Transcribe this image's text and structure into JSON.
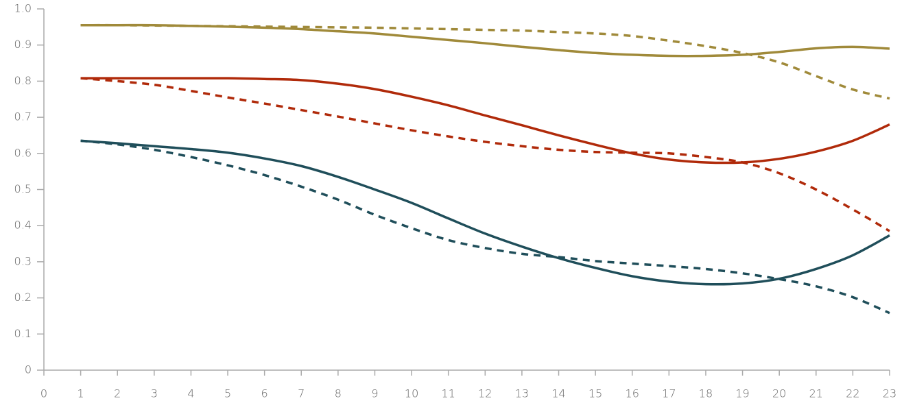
{
  "chart_data": {
    "type": "line",
    "x": [
      1,
      2,
      3,
      4,
      5,
      6,
      7,
      8,
      9,
      10,
      11,
      12,
      13,
      14,
      15,
      16,
      17,
      18,
      19,
      20,
      21,
      22,
      23
    ],
    "series": [
      {
        "color": "#a08a3a",
        "dashed": false,
        "values": [
          0.955,
          0.955,
          0.955,
          0.953,
          0.951,
          0.948,
          0.944,
          0.938,
          0.932,
          0.923,
          0.914,
          0.905,
          0.895,
          0.886,
          0.878,
          0.873,
          0.87,
          0.87,
          0.873,
          0.881,
          0.891,
          0.895,
          0.89
        ]
      },
      {
        "color": "#a08a3a",
        "dashed": true,
        "values": [
          0.955,
          0.955,
          0.954,
          0.953,
          0.952,
          0.951,
          0.95,
          0.949,
          0.948,
          0.946,
          0.944,
          0.942,
          0.94,
          0.936,
          0.932,
          0.925,
          0.912,
          0.897,
          0.878,
          0.852,
          0.814,
          0.777,
          0.752
        ]
      },
      {
        "color": "#b02a0a",
        "dashed": false,
        "values": [
          0.808,
          0.808,
          0.808,
          0.808,
          0.808,
          0.806,
          0.803,
          0.793,
          0.778,
          0.757,
          0.733,
          0.705,
          0.678,
          0.65,
          0.624,
          0.6,
          0.583,
          0.575,
          0.575,
          0.585,
          0.605,
          0.635,
          0.68
        ]
      },
      {
        "color": "#b02a0a",
        "dashed": true,
        "values": [
          0.808,
          0.8,
          0.79,
          0.773,
          0.755,
          0.738,
          0.72,
          0.702,
          0.683,
          0.664,
          0.647,
          0.632,
          0.62,
          0.61,
          0.604,
          0.602,
          0.6,
          0.59,
          0.575,
          0.545,
          0.5,
          0.445,
          0.385
        ]
      },
      {
        "color": "#1f4e5a",
        "dashed": false,
        "values": [
          0.635,
          0.628,
          0.62,
          0.612,
          0.602,
          0.586,
          0.565,
          0.535,
          0.5,
          0.463,
          0.42,
          0.378,
          0.342,
          0.31,
          0.283,
          0.26,
          0.245,
          0.238,
          0.24,
          0.253,
          0.28,
          0.318,
          0.373
        ]
      },
      {
        "color": "#1f4e5a",
        "dashed": true,
        "values": [
          0.635,
          0.625,
          0.61,
          0.59,
          0.567,
          0.54,
          0.508,
          0.472,
          0.43,
          0.393,
          0.36,
          0.338,
          0.322,
          0.313,
          0.302,
          0.295,
          0.288,
          0.28,
          0.268,
          0.252,
          0.232,
          0.202,
          0.158
        ]
      }
    ],
    "xlim": [
      0,
      23
    ],
    "xticks": [
      0,
      1,
      2,
      3,
      4,
      5,
      6,
      7,
      8,
      9,
      10,
      11,
      12,
      13,
      14,
      15,
      16,
      17,
      18,
      19,
      20,
      21,
      22,
      23
    ],
    "ylim": [
      0,
      1
    ],
    "yticks": [
      0,
      0.1,
      0.2,
      0.3,
      0.4,
      0.5,
      0.6,
      0.7,
      0.8,
      0.9,
      {
        "value": 1,
        "label": "1.0"
      }
    ]
  }
}
